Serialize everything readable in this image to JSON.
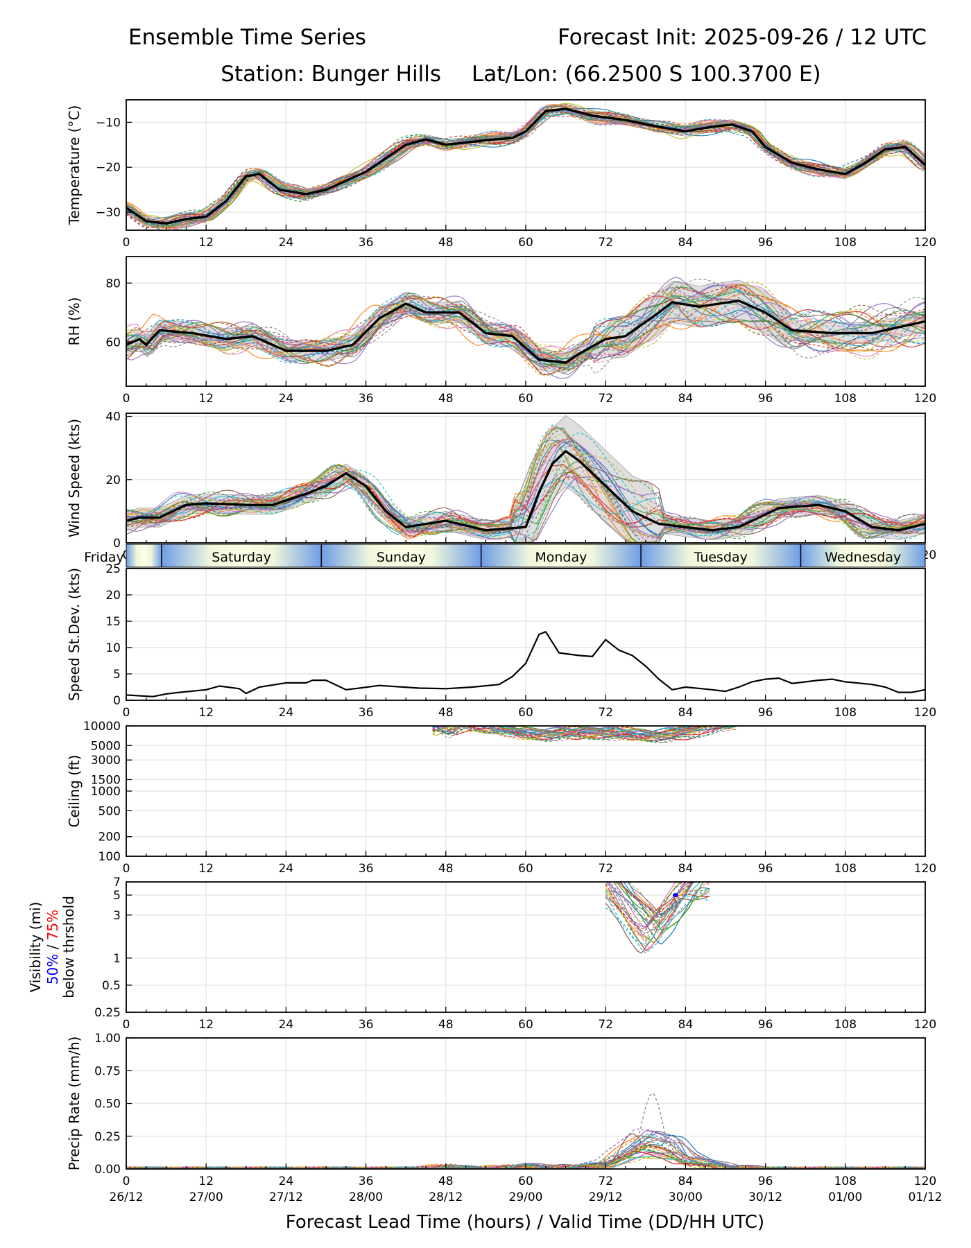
{
  "header": {
    "title_left": "Ensemble Time Series",
    "title_right": "Forecast Init: 2025-09-26 / 12 UTC",
    "station": "Station: Bunger Hills",
    "latlon": "Lat/Lon: (66.2500 S 100.3700 E)"
  },
  "day_strip": {
    "labels": [
      "Friday",
      "Saturday",
      "Sunday",
      "Monday",
      "Tuesday",
      "Wednesday"
    ],
    "boundary_hours": [
      5.3,
      29.3,
      53.3,
      77.3,
      101.3
    ]
  },
  "x_axis": {
    "label": "Forecast Lead Time (hours) / Valid Time (DD/HH UTC)",
    "ticks": [
      0,
      12,
      24,
      36,
      48,
      60,
      72,
      84,
      96,
      108,
      120
    ],
    "valid_labels": [
      "26/12",
      "27/00",
      "27/12",
      "28/00",
      "28/12",
      "29/00",
      "29/12",
      "30/00",
      "30/12",
      "01/00",
      "01/12"
    ]
  },
  "colors": {
    "mean": "#000000",
    "spread_fill": "#d3d3d3",
    "grid": "#e6e6e6",
    "label_50": "#0000ff",
    "label_75": "#ff0000",
    "members": [
      "#1f77b4",
      "#ff7f0e",
      "#2ca02c",
      "#d62728",
      "#9467bd",
      "#8c564b",
      "#e377c2",
      "#7f7f7f",
      "#bcbd22",
      "#17becf"
    ]
  },
  "chart_data": [
    {
      "id": "temperature",
      "type": "line",
      "ylabel": "Temperature (°C)",
      "ylim": [
        -34,
        -5
      ],
      "yticks": [
        -30,
        -20,
        -10
      ],
      "yticklabels": [
        "−30",
        "−20",
        "−10"
      ],
      "member_spread": 1.1,
      "mean": [
        [
          0,
          -29
        ],
        [
          3,
          -32
        ],
        [
          6,
          -32.5
        ],
        [
          9,
          -31.5
        ],
        [
          12,
          -31
        ],
        [
          15,
          -27.5
        ],
        [
          18,
          -22
        ],
        [
          20,
          -21.5
        ],
        [
          23,
          -25
        ],
        [
          27,
          -26
        ],
        [
          30,
          -25
        ],
        [
          36,
          -21
        ],
        [
          42,
          -15
        ],
        [
          45,
          -13.8
        ],
        [
          48,
          -15
        ],
        [
          54,
          -14
        ],
        [
          58,
          -13.5
        ],
        [
          60,
          -12
        ],
        [
          63,
          -7.5
        ],
        [
          66,
          -7
        ],
        [
          70,
          -8.5
        ],
        [
          75,
          -9.5
        ],
        [
          80,
          -11
        ],
        [
          84,
          -12
        ],
        [
          88,
          -11
        ],
        [
          91,
          -10.5
        ],
        [
          94,
          -12
        ],
        [
          96,
          -15.5
        ],
        [
          100,
          -19
        ],
        [
          104,
          -20.5
        ],
        [
          108,
          -21.5
        ],
        [
          111,
          -19
        ],
        [
          114,
          -16
        ],
        [
          117,
          -15.5
        ],
        [
          120,
          -19.5
        ]
      ]
    },
    {
      "id": "rh",
      "type": "line",
      "ylabel": "RH (%)",
      "ylim": [
        45,
        89
      ],
      "yticks": [
        60,
        80
      ],
      "yticklabels": [
        "60",
        "80"
      ],
      "member_spread": 3.5,
      "mean": [
        [
          0,
          59
        ],
        [
          2,
          61
        ],
        [
          3,
          59
        ],
        [
          5,
          64
        ],
        [
          10,
          63
        ],
        [
          15,
          61
        ],
        [
          19,
          62
        ],
        [
          24,
          57
        ],
        [
          30,
          57
        ],
        [
          34,
          59
        ],
        [
          38,
          68
        ],
        [
          42,
          73
        ],
        [
          45,
          70
        ],
        [
          50,
          70
        ],
        [
          54,
          63
        ],
        [
          58,
          62
        ],
        [
          62,
          54
        ],
        [
          66,
          53
        ],
        [
          68,
          56
        ],
        [
          72,
          61
        ],
        [
          75,
          62
        ],
        [
          80,
          70
        ],
        [
          82,
          73.5
        ],
        [
          86,
          72
        ],
        [
          92,
          74
        ],
        [
          96,
          70
        ],
        [
          100,
          64
        ],
        [
          106,
          63
        ],
        [
          112,
          63
        ],
        [
          116,
          65
        ],
        [
          120,
          67
        ]
      ]
    },
    {
      "id": "wind",
      "type": "line",
      "ylabel": "Wind Speed (kts)",
      "ylim": [
        0,
        41
      ],
      "yticks": [
        0,
        20,
        40
      ],
      "yticklabels": [
        "0",
        "20",
        "40"
      ],
      "member_spread": 2.5,
      "mean": [
        [
          0,
          7
        ],
        [
          2,
          8
        ],
        [
          5,
          8
        ],
        [
          9,
          12
        ],
        [
          12,
          12.5
        ],
        [
          18,
          12
        ],
        [
          22,
          12
        ],
        [
          27,
          15.5
        ],
        [
          30,
          18
        ],
        [
          33,
          22
        ],
        [
          36,
          18
        ],
        [
          39,
          10
        ],
        [
          42,
          5
        ],
        [
          48,
          7
        ],
        [
          52,
          5
        ],
        [
          54,
          4
        ],
        [
          60,
          5
        ],
        [
          62,
          16
        ],
        [
          64,
          25
        ],
        [
          66,
          29
        ],
        [
          68,
          26
        ],
        [
          72,
          18
        ],
        [
          76,
          10
        ],
        [
          80,
          6
        ],
        [
          84,
          5
        ],
        [
          88,
          4
        ],
        [
          92,
          5
        ],
        [
          96,
          9
        ],
        [
          98,
          11
        ],
        [
          104,
          12
        ],
        [
          108,
          10
        ],
        [
          112,
          5
        ],
        [
          116,
          4
        ],
        [
          120,
          6
        ]
      ]
    },
    {
      "id": "speed_sd",
      "type": "line",
      "ylabel": "Speed St.Dev. (kts)",
      "ylim": [
        0,
        25
      ],
      "yticks": [
        0,
        5,
        10,
        15,
        20,
        25
      ],
      "yticklabels": [
        "0",
        "5",
        "10",
        "15",
        "20",
        "25"
      ],
      "mean": [
        [
          0,
          1
        ],
        [
          4,
          0.7
        ],
        [
          6,
          1.2
        ],
        [
          8,
          1.5
        ],
        [
          12,
          2
        ],
        [
          14,
          2.7
        ],
        [
          17,
          2.2
        ],
        [
          18,
          1.3
        ],
        [
          20,
          2.5
        ],
        [
          24,
          3.3
        ],
        [
          27,
          3.3
        ],
        [
          28,
          3.8
        ],
        [
          30,
          3.8
        ],
        [
          33,
          2
        ],
        [
          35,
          2.3
        ],
        [
          38,
          2.8
        ],
        [
          44,
          2.3
        ],
        [
          48,
          2.2
        ],
        [
          52,
          2.5
        ],
        [
          56,
          3
        ],
        [
          58,
          4.5
        ],
        [
          60,
          7
        ],
        [
          62,
          12.5
        ],
        [
          63,
          13
        ],
        [
          65,
          9
        ],
        [
          68,
          8.5
        ],
        [
          70,
          8.3
        ],
        [
          72,
          11.5
        ],
        [
          74,
          9.5
        ],
        [
          76,
          8.5
        ],
        [
          78,
          6.5
        ],
        [
          80,
          4
        ],
        [
          82,
          2
        ],
        [
          84,
          2.5
        ],
        [
          88,
          2
        ],
        [
          90,
          1.7
        ],
        [
          92,
          2.5
        ],
        [
          94,
          3.5
        ],
        [
          96,
          4
        ],
        [
          98,
          4.2
        ],
        [
          100,
          3.2
        ],
        [
          104,
          3.8
        ],
        [
          106,
          4
        ],
        [
          108,
          3.5
        ],
        [
          112,
          3
        ],
        [
          114,
          2.5
        ],
        [
          116,
          1.5
        ],
        [
          118,
          1.5
        ],
        [
          120,
          2
        ]
      ]
    },
    {
      "id": "ceiling",
      "type": "line",
      "ylabel": "Ceiling (ft)",
      "log": true,
      "ylim": [
        100,
        10000
      ],
      "yticks": [
        100,
        200,
        500,
        1000,
        1500,
        3000,
        5000,
        10000
      ],
      "yticklabels": [
        "100",
        "200",
        "500",
        "1000",
        "1500",
        "3000",
        "5000",
        "10000"
      ],
      "member_spread": 0.1,
      "members_base": [
        [
          46,
          10500
        ],
        [
          48,
          8200
        ],
        [
          50,
          10500
        ],
        [
          55,
          9500
        ],
        [
          58,
          8000
        ],
        [
          62,
          7400
        ],
        [
          66,
          7600
        ],
        [
          70,
          7900
        ],
        [
          74,
          7600
        ],
        [
          80,
          7000
        ],
        [
          84,
          7800
        ],
        [
          88,
          10400
        ],
        [
          92,
          10800
        ]
      ]
    },
    {
      "id": "visibility",
      "type": "line",
      "ylabel_lines": [
        "Visibility (mi)",
        "50% / 75%",
        "below thrshold"
      ],
      "log": true,
      "ylim": [
        0.25,
        7
      ],
      "yticks": [
        0.25,
        0.5,
        1,
        3,
        5,
        7
      ],
      "yticklabels": [
        "0.25",
        "0.5",
        "1",
        "3",
        "5",
        "7"
      ],
      "legend": {
        "pct_50": "50%",
        "pct_75": "75%",
        "separator": "/"
      },
      "member_spread": 0.12,
      "members_base": [
        [
          72,
          7.5
        ],
        [
          75,
          4
        ],
        [
          77,
          2.6
        ],
        [
          79,
          1.8
        ],
        [
          81,
          2.6
        ],
        [
          83,
          4
        ],
        [
          85,
          6.5
        ],
        [
          88,
          7.5
        ]
      ],
      "marker_50": [
        82.5,
        5
      ]
    },
    {
      "id": "precip",
      "type": "line",
      "ylabel": "Precip Rate (mm/h)",
      "ylim": [
        0,
        1
      ],
      "yticks": [
        0,
        0.25,
        0.5,
        0.75,
        1
      ],
      "yticklabels": [
        "0.00",
        "0.25",
        "0.50",
        "0.75",
        "1.00"
      ],
      "member_spread": 0.35,
      "members_base": [
        [
          0,
          0
        ],
        [
          44,
          0
        ],
        [
          48,
          0.02
        ],
        [
          52,
          0
        ],
        [
          60,
          0.02
        ],
        [
          66,
          0.01
        ],
        [
          72,
          0.03
        ],
        [
          75,
          0.12
        ],
        [
          78,
          0.2
        ],
        [
          80,
          0.18
        ],
        [
          82,
          0.16
        ],
        [
          84,
          0.08
        ],
        [
          88,
          0.03
        ],
        [
          92,
          0.01
        ],
        [
          96,
          0
        ],
        [
          120,
          0
        ]
      ],
      "peaks": [
        [
          79,
          0.58
        ],
        [
          76,
          0.27
        ],
        [
          82,
          0.26
        ],
        [
          80,
          0.28
        ]
      ]
    }
  ]
}
